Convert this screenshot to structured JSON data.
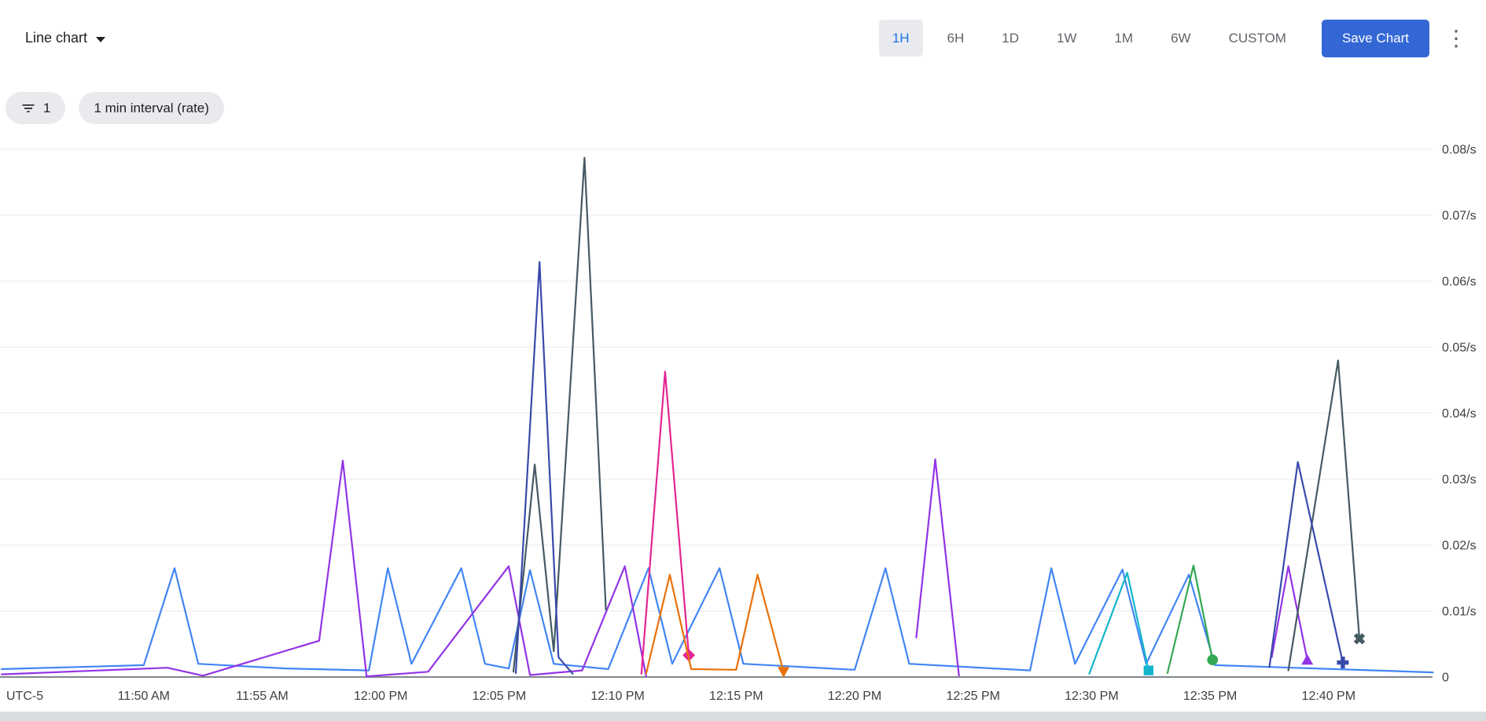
{
  "toolbar": {
    "chart_type_label": "Line chart",
    "time_ranges": [
      "1H",
      "6H",
      "1D",
      "1W",
      "1M",
      "6W",
      "CUSTOM"
    ],
    "selected_range": "1H",
    "save_button_label": "Save Chart",
    "more_options_glyph": "⋮"
  },
  "filters": {
    "filter_chip_count": "1",
    "interval_chip_label": "1 min interval (rate)"
  },
  "colors": {
    "accent_blue": "#1a73e8",
    "save_button_blue": "#3367d6",
    "selected_range_bg": "#e8eaed",
    "chip_bg": "#e8eaed",
    "gridline": "#e8eaed",
    "axis_line": "#80868b",
    "axis_text": "#3c4043"
  },
  "chart_data": {
    "type": "line",
    "unit": "/s",
    "legend": "none",
    "x_axis": {
      "timezone_label": "UTC-5",
      "visible_range": "11:44 AM - 12:44 PM",
      "tick_labels": [
        "11:50 AM",
        "11:55 AM",
        "12:00 PM",
        "12:05 PM",
        "12:10 PM",
        "12:15 PM",
        "12:20 PM",
        "12:25 PM",
        "12:30 PM",
        "12:35 PM",
        "12:40 PM"
      ],
      "tick_minutes": [
        6,
        11,
        16,
        21,
        26,
        31,
        36,
        41,
        46,
        51,
        56
      ],
      "minutes_origin": "11:44 AM"
    },
    "y_axis": {
      "position": "right",
      "grid": true,
      "range": [
        0,
        0.08
      ],
      "tick_values": [
        0,
        0.01,
        0.02,
        0.03,
        0.04,
        0.05,
        0.06,
        0.07,
        0.08
      ],
      "tick_labels": [
        "0",
        "0.01/s",
        "0.02/s",
        "0.03/s",
        "0.04/s",
        "0.05/s",
        "0.06/s",
        "0.07/s",
        "0.08/s"
      ]
    },
    "series": [
      {
        "name": "blue",
        "color": "#4285f4",
        "end_marker": null,
        "points": [
          [
            0,
            0.0012
          ],
          [
            6,
            0.0018
          ],
          [
            7.3,
            0.0165
          ],
          [
            8.3,
            0.002
          ],
          [
            12,
            0.0013
          ],
          [
            15.5,
            0.001
          ],
          [
            16.3,
            0.0165
          ],
          [
            17.3,
            0.002
          ],
          [
            19.4,
            0.0165
          ],
          [
            20.4,
            0.002
          ],
          [
            21.4,
            0.0013
          ],
          [
            22.3,
            0.0162
          ],
          [
            23.3,
            0.002
          ],
          [
            25.6,
            0.0012
          ],
          [
            27.3,
            0.0165
          ],
          [
            28.3,
            0.002
          ],
          [
            30.3,
            0.0165
          ],
          [
            31.3,
            0.002
          ],
          [
            36,
            0.0011
          ],
          [
            37.3,
            0.0165
          ],
          [
            38.3,
            0.002
          ],
          [
            43.4,
            0.001
          ],
          [
            44.3,
            0.0165
          ],
          [
            45.3,
            0.002
          ],
          [
            47.3,
            0.0163
          ],
          [
            48.3,
            0.002
          ],
          [
            50.1,
            0.0155
          ],
          [
            51.2,
            0.0018
          ],
          [
            60.4,
            0.0007
          ]
        ]
      },
      {
        "name": "purple",
        "color": "#9334e6",
        "end_marker": "triangle-up",
        "points": [
          [
            0,
            0.0004
          ],
          [
            7,
            0.0014
          ],
          [
            8.5,
            0.0002
          ],
          [
            13.4,
            0.0055
          ],
          [
            14.4,
            0.0328
          ],
          [
            15.4,
            0.0001
          ],
          [
            18,
            0.0008
          ],
          [
            21.4,
            0.0168
          ],
          [
            22.3,
            0.0003
          ],
          [
            24.5,
            0.001
          ],
          [
            26.3,
            0.0168
          ],
          [
            27.2,
            0.0001
          ],
          null,
          [
            38.6,
            0.006
          ],
          [
            39.4,
            0.033
          ],
          [
            40.4,
            0.0002
          ],
          null,
          [
            53.6,
            0.003
          ],
          [
            54.3,
            0.0168
          ],
          [
            55.1,
            0.0026
          ]
        ]
      },
      {
        "name": "slate",
        "color": "#455a64",
        "end_marker": "x",
        "points": [
          [
            21.6,
            0.0008
          ],
          [
            22.5,
            0.0322
          ],
          [
            23.3,
            0.0039
          ],
          [
            24.6,
            0.0787
          ],
          [
            25.5,
            0.0102
          ],
          null,
          [
            54.3,
            0.001
          ],
          [
            56.4,
            0.048
          ],
          [
            57.3,
            0.0058
          ]
        ]
      },
      {
        "name": "indigo",
        "color": "#3949ab",
        "end_marker": "plus",
        "points": [
          [
            21.7,
            0.0006
          ],
          [
            22.7,
            0.0629
          ],
          [
            23.5,
            0.003
          ],
          [
            24.1,
            0.0005
          ],
          null,
          [
            53.5,
            0.0015
          ],
          [
            54.7,
            0.0326
          ],
          [
            56.6,
            0.0022
          ]
        ]
      },
      {
        "name": "magenta",
        "color": "#e52592",
        "end_marker": "diamond",
        "points": [
          [
            27,
            0.0005
          ],
          [
            28,
            0.0463
          ],
          [
            29,
            0.0033
          ]
        ]
      },
      {
        "name": "orange",
        "color": "#e8710a",
        "end_marker": "triangle-down",
        "points": [
          [
            27.2,
            0.0005
          ],
          [
            28.2,
            0.0155
          ],
          [
            29.1,
            0.0012
          ],
          [
            31,
            0.0011
          ],
          [
            31.9,
            0.0155
          ],
          [
            33,
            0.0008
          ]
        ]
      },
      {
        "name": "teal",
        "color": "#12b5cb",
        "end_marker": "square",
        "points": [
          [
            45.9,
            0.0005
          ],
          [
            47.5,
            0.0158
          ],
          [
            48.4,
            0.001
          ]
        ]
      },
      {
        "name": "green",
        "color": "#34a853",
        "end_marker": "circle",
        "points": [
          [
            49.2,
            0.0006
          ],
          [
            50.3,
            0.0169
          ],
          [
            51.1,
            0.0026
          ]
        ]
      }
    ]
  }
}
